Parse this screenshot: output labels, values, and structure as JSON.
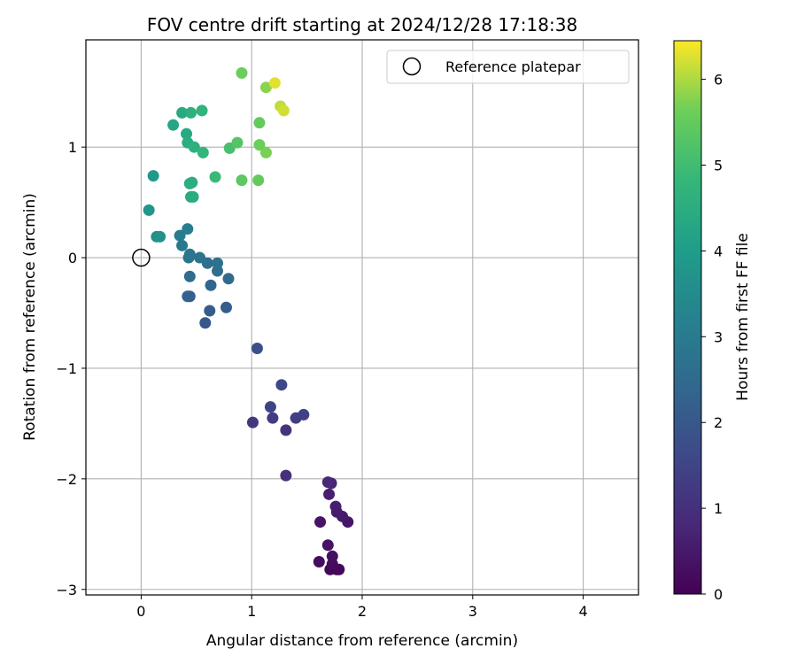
{
  "chart_data": {
    "type": "scatter",
    "title": "FOV centre drift starting at 2024/12/28 17:18:38",
    "xlabel": "Angular distance from reference (arcmin)",
    "ylabel": "Rotation from reference (arcmin)",
    "xlim": [
      -0.5,
      4.5
    ],
    "ylim": [
      -3.05,
      1.97
    ],
    "xticks": [
      0,
      1,
      2,
      3,
      4
    ],
    "xtick_labels": [
      "0",
      "1",
      "2",
      "3",
      "4"
    ],
    "yticks": [
      -3,
      -2,
      -1,
      0,
      1
    ],
    "ytick_labels": [
      "−3",
      "−2",
      "−1",
      "0",
      "1"
    ],
    "grid": true,
    "legend": {
      "placement": "top-right",
      "entries": [
        {
          "label": "Reference platepar",
          "marker": "open-circle"
        }
      ]
    },
    "reference_point": {
      "x": 0,
      "y": 0
    },
    "colorbar": {
      "label": "Hours from first FF file",
      "colormap": "viridis",
      "range": [
        0,
        6.45
      ],
      "ticks": [
        0,
        1,
        2,
        3,
        4,
        5,
        6
      ],
      "tick_labels": [
        "0",
        "1",
        "2",
        "3",
        "4",
        "5",
        "6"
      ]
    },
    "points": [
      {
        "x": 1.77,
        "y": -2.82,
        "h": 0.0
      },
      {
        "x": 1.71,
        "y": -2.82,
        "h": 0.1
      },
      {
        "x": 1.79,
        "y": -2.82,
        "h": 0.15
      },
      {
        "x": 1.73,
        "y": -2.77,
        "h": 0.2
      },
      {
        "x": 1.61,
        "y": -2.75,
        "h": 0.25
      },
      {
        "x": 1.73,
        "y": -2.7,
        "h": 0.3
      },
      {
        "x": 1.69,
        "y": -2.6,
        "h": 0.35
      },
      {
        "x": 1.62,
        "y": -2.39,
        "h": 0.4
      },
      {
        "x": 1.87,
        "y": -2.39,
        "h": 0.45
      },
      {
        "x": 1.82,
        "y": -2.34,
        "h": 0.5
      },
      {
        "x": 1.77,
        "y": -2.3,
        "h": 0.55
      },
      {
        "x": 1.76,
        "y": -2.25,
        "h": 0.6
      },
      {
        "x": 1.7,
        "y": -2.14,
        "h": 0.65
      },
      {
        "x": 1.72,
        "y": -2.04,
        "h": 0.75
      },
      {
        "x": 1.69,
        "y": -2.03,
        "h": 0.8
      },
      {
        "x": 1.31,
        "y": -1.97,
        "h": 1.0
      },
      {
        "x": 1.31,
        "y": -1.56,
        "h": 1.1
      },
      {
        "x": 1.01,
        "y": -1.49,
        "h": 1.2
      },
      {
        "x": 1.19,
        "y": -1.45,
        "h": 1.3
      },
      {
        "x": 1.4,
        "y": -1.45,
        "h": 1.35
      },
      {
        "x": 1.47,
        "y": -1.42,
        "h": 1.4
      },
      {
        "x": 1.17,
        "y": -1.35,
        "h": 1.5
      },
      {
        "x": 1.27,
        "y": -1.15,
        "h": 1.6
      },
      {
        "x": 1.05,
        "y": -0.82,
        "h": 1.8
      },
      {
        "x": 0.58,
        "y": -0.59,
        "h": 2.0
      },
      {
        "x": 0.62,
        "y": -0.48,
        "h": 2.1
      },
      {
        "x": 0.77,
        "y": -0.45,
        "h": 2.15
      },
      {
        "x": 0.44,
        "y": -0.35,
        "h": 2.25
      },
      {
        "x": 0.42,
        "y": -0.35,
        "h": 2.3
      },
      {
        "x": 0.63,
        "y": -0.25,
        "h": 2.4
      },
      {
        "x": 0.79,
        "y": -0.19,
        "h": 2.5
      },
      {
        "x": 0.44,
        "y": -0.17,
        "h": 2.55
      },
      {
        "x": 0.69,
        "y": -0.12,
        "h": 2.6
      },
      {
        "x": 0.6,
        "y": -0.05,
        "h": 2.65
      },
      {
        "x": 0.69,
        "y": -0.05,
        "h": 2.7
      },
      {
        "x": 0.53,
        "y": 0.0,
        "h": 2.75
      },
      {
        "x": 0.43,
        "y": 0.0,
        "h": 2.8
      },
      {
        "x": 0.44,
        "y": 0.03,
        "h": 2.85
      },
      {
        "x": 0.37,
        "y": 0.11,
        "h": 2.9
      },
      {
        "x": 0.35,
        "y": 0.2,
        "h": 3.0
      },
      {
        "x": 0.42,
        "y": 0.26,
        "h": 3.1
      },
      {
        "x": 0.14,
        "y": 0.19,
        "h": 3.6
      },
      {
        "x": 0.17,
        "y": 0.19,
        "h": 3.7
      },
      {
        "x": 0.07,
        "y": 0.43,
        "h": 3.8
      },
      {
        "x": 0.11,
        "y": 0.74,
        "h": 3.9
      },
      {
        "x": 0.45,
        "y": 0.55,
        "h": 4.4
      },
      {
        "x": 0.47,
        "y": 0.55,
        "h": 4.45
      },
      {
        "x": 0.44,
        "y": 0.67,
        "h": 4.5
      },
      {
        "x": 0.46,
        "y": 0.68,
        "h": 4.55
      },
      {
        "x": 0.29,
        "y": 1.2,
        "h": 4.3
      },
      {
        "x": 0.37,
        "y": 1.31,
        "h": 4.4
      },
      {
        "x": 0.41,
        "y": 1.12,
        "h": 4.4
      },
      {
        "x": 0.42,
        "y": 1.04,
        "h": 4.5
      },
      {
        "x": 0.45,
        "y": 1.31,
        "h": 4.6
      },
      {
        "x": 0.48,
        "y": 1.0,
        "h": 4.6
      },
      {
        "x": 0.55,
        "y": 1.33,
        "h": 4.7
      },
      {
        "x": 0.56,
        "y": 0.95,
        "h": 4.8
      },
      {
        "x": 0.67,
        "y": 0.73,
        "h": 4.9
      },
      {
        "x": 0.8,
        "y": 0.99,
        "h": 5.1
      },
      {
        "x": 0.87,
        "y": 1.04,
        "h": 5.3
      },
      {
        "x": 0.91,
        "y": 0.7,
        "h": 5.4
      },
      {
        "x": 1.06,
        "y": 0.7,
        "h": 5.5
      },
      {
        "x": 1.07,
        "y": 1.02,
        "h": 5.6
      },
      {
        "x": 1.13,
        "y": 0.95,
        "h": 5.7
      },
      {
        "x": 1.07,
        "y": 1.22,
        "h": 5.5
      },
      {
        "x": 0.91,
        "y": 1.67,
        "h": 5.6
      },
      {
        "x": 1.13,
        "y": 1.54,
        "h": 5.8
      },
      {
        "x": 1.26,
        "y": 1.37,
        "h": 6.1
      },
      {
        "x": 1.29,
        "y": 1.33,
        "h": 6.2
      },
      {
        "x": 1.21,
        "y": 1.58,
        "h": 6.3
      }
    ]
  }
}
